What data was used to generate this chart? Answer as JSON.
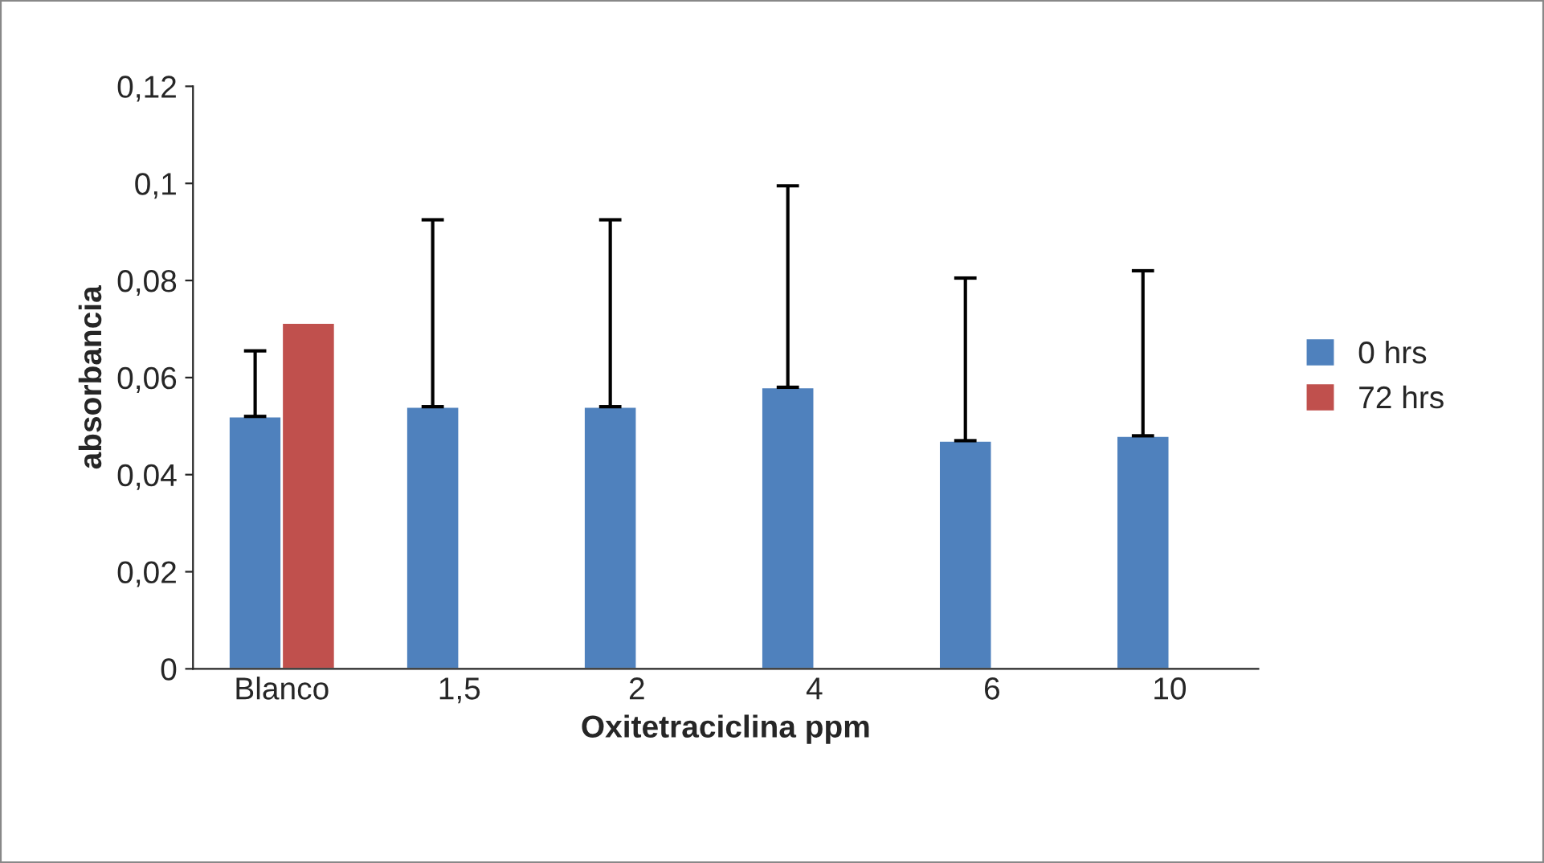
{
  "chart_data": {
    "type": "bar",
    "xlabel": "Oxitetraciclina ppm",
    "ylabel": "absorbancia",
    "categories": [
      "Blanco",
      "1,5",
      "2",
      "4",
      "6",
      "10"
    ],
    "series": [
      {
        "name": "0 hrs",
        "color": "#4f81bd",
        "values": [
          0.052,
          0.054,
          0.054,
          0.058,
          0.047,
          0.048
        ],
        "errors": [
          [
            0.052,
            0.0655
          ],
          [
            0.054,
            0.0925
          ],
          [
            0.054,
            0.0925
          ],
          [
            0.058,
            0.0995
          ],
          [
            0.047,
            0.0805
          ],
          [
            0.048,
            0.082
          ]
        ]
      },
      {
        "name": "72 hrs",
        "color": "#c0504d",
        "values": [
          0.0713,
          null,
          null,
          null,
          null,
          null
        ]
      }
    ],
    "ylim": [
      0,
      0.12
    ],
    "yticks": [
      {
        "value": 0,
        "label": "0"
      },
      {
        "value": 0.02,
        "label": "0,02"
      },
      {
        "value": 0.04,
        "label": "0,04"
      },
      {
        "value": 0.06,
        "label": "0,06"
      },
      {
        "value": 0.08,
        "label": "0,08"
      },
      {
        "value": 0.1,
        "label": "0,1"
      },
      {
        "value": 0.12,
        "label": "0,12"
      }
    ],
    "grid": false,
    "legend": "right"
  }
}
